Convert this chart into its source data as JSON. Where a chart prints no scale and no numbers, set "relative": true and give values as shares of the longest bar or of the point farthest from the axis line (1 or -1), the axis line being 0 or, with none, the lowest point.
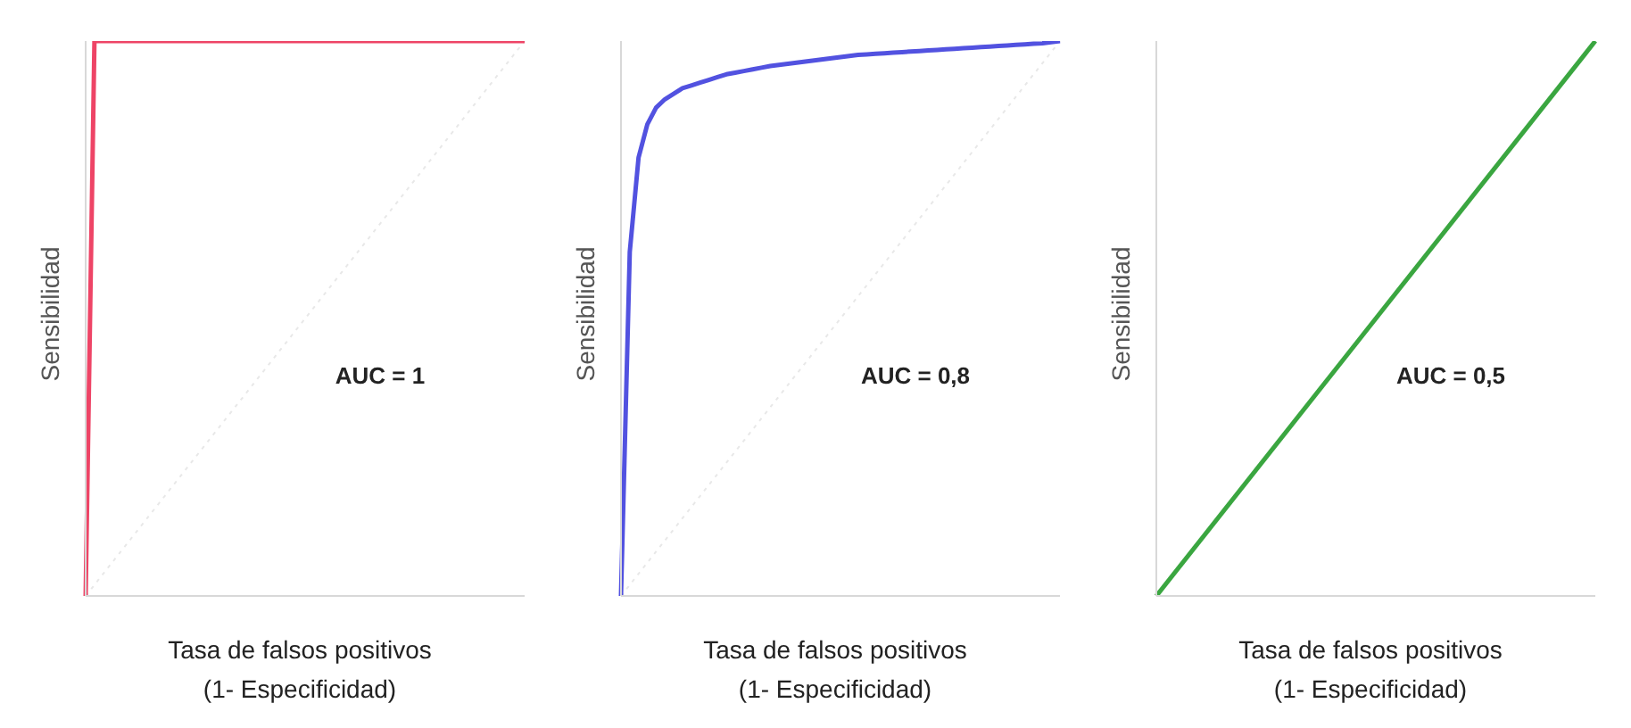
{
  "chart_data": [
    {
      "type": "line",
      "relative": true,
      "xlabel": "Tasa de falsos positivos\n(1- Especificidad)",
      "ylabel": "Sensibilidad",
      "annotations": [
        "AUC = 1"
      ],
      "categories": [
        null,
        null,
        null,
        null,
        null,
        null,
        null,
        null,
        null,
        null,
        null,
        null,
        null,
        null,
        null,
        null,
        null,
        null,
        null,
        null,
        null,
        null,
        null,
        null,
        null,
        null,
        null,
        null,
        null,
        null,
        null,
        null,
        null,
        null,
        null,
        null,
        null,
        null,
        null,
        null,
        null,
        null,
        null,
        null,
        null,
        null,
        null,
        null,
        null,
        null,
        null
      ],
      "series": [
        {
          "color": "#e8e8e8",
          "line_style": "dotted",
          "values": [
            0,
            0.02,
            0.04,
            0.06,
            0.08,
            0.1,
            0.12,
            0.14,
            0.16,
            0.18,
            0.2,
            0.22,
            0.24,
            0.26,
            0.28,
            0.3,
            0.32,
            0.34,
            0.36,
            0.38,
            0.4,
            0.42,
            0.44,
            0.46,
            0.48,
            0.5,
            0.52,
            0.54,
            0.56,
            0.58,
            0.6,
            0.62,
            0.64,
            0.66,
            0.68,
            0.7,
            0.72,
            0.74,
            0.76,
            0.78,
            0.8,
            0.82,
            0.84,
            0.86,
            0.88,
            0.9,
            0.92,
            0.94,
            0.96,
            0.98,
            1
          ]
        },
        {
          "color": "#ee4466",
          "line_style": "solid",
          "values": [
            0,
            1,
            1,
            1,
            1,
            1,
            1,
            1,
            1,
            1,
            1,
            1,
            1,
            1,
            1,
            1,
            1,
            1,
            1,
            1,
            1,
            1,
            1,
            1,
            1,
            1,
            1,
            1,
            1,
            1,
            1,
            1,
            1,
            1,
            1,
            1,
            1,
            1,
            1,
            1,
            1,
            1,
            1,
            1,
            1,
            1,
            1,
            1,
            1,
            1,
            1
          ]
        }
      ]
    },
    {
      "type": "line",
      "relative": true,
      "xlabel": "Tasa de falsos positivos\n(1- Especificidad)",
      "ylabel": "Sensibilidad",
      "annotations": [
        "AUC = 0,8"
      ],
      "categories": [
        null,
        null,
        null,
        null,
        null,
        null,
        null,
        null,
        null,
        null,
        null,
        null,
        null,
        null,
        null,
        null,
        null,
        null,
        null,
        null,
        null,
        null,
        null,
        null,
        null,
        null,
        null,
        null,
        null,
        null,
        null,
        null,
        null,
        null,
        null,
        null,
        null,
        null,
        null,
        null,
        null,
        null,
        null,
        null,
        null,
        null,
        null,
        null,
        null,
        null,
        null
      ],
      "series": [
        {
          "color": "#e8e8e8",
          "line_style": "dotted",
          "values": [
            0,
            0.02,
            0.04,
            0.06,
            0.08,
            0.1,
            0.12,
            0.14,
            0.16,
            0.18,
            0.2,
            0.22,
            0.24,
            0.26,
            0.28,
            0.3,
            0.32,
            0.34,
            0.36,
            0.38,
            0.4,
            0.42,
            0.44,
            0.46,
            0.48,
            0.5,
            0.52,
            0.54,
            0.56,
            0.58,
            0.6,
            0.62,
            0.64,
            0.66,
            0.68,
            0.7,
            0.72,
            0.74,
            0.76,
            0.78,
            0.8,
            0.82,
            0.84,
            0.86,
            0.88,
            0.9,
            0.92,
            0.94,
            0.96,
            0.98,
            1
          ]
        },
        {
          "color": "#5252e0",
          "line_style": "solid",
          "values": [
            0,
            0.62,
            0.79,
            0.85,
            0.88,
            0.895,
            0.905,
            0.915,
            0.92,
            0.925,
            0.93,
            0.935,
            0.94,
            0.943,
            0.946,
            0.949,
            0.952,
            0.955,
            0.957,
            0.959,
            0.961,
            0.963,
            0.965,
            0.967,
            0.969,
            0.971,
            0.973,
            0.975,
            0.976,
            0.977,
            0.978,
            0.979,
            0.98,
            0.981,
            0.982,
            0.983,
            0.984,
            0.985,
            0.986,
            0.987,
            0.988,
            0.989,
            0.99,
            0.991,
            0.992,
            0.993,
            0.994,
            0.995,
            0.996,
            0.998,
            1
          ]
        }
      ]
    },
    {
      "type": "line",
      "relative": true,
      "xlabel": "Tasa de falsos positivos\n(1- Especificidad)",
      "ylabel": "Sensibilidad",
      "annotations": [
        "AUC = 0,5"
      ],
      "categories": [
        null,
        null
      ],
      "series": [
        {
          "color": "#3aa640",
          "line_style": "solid",
          "values": [
            0,
            1
          ]
        }
      ]
    }
  ]
}
